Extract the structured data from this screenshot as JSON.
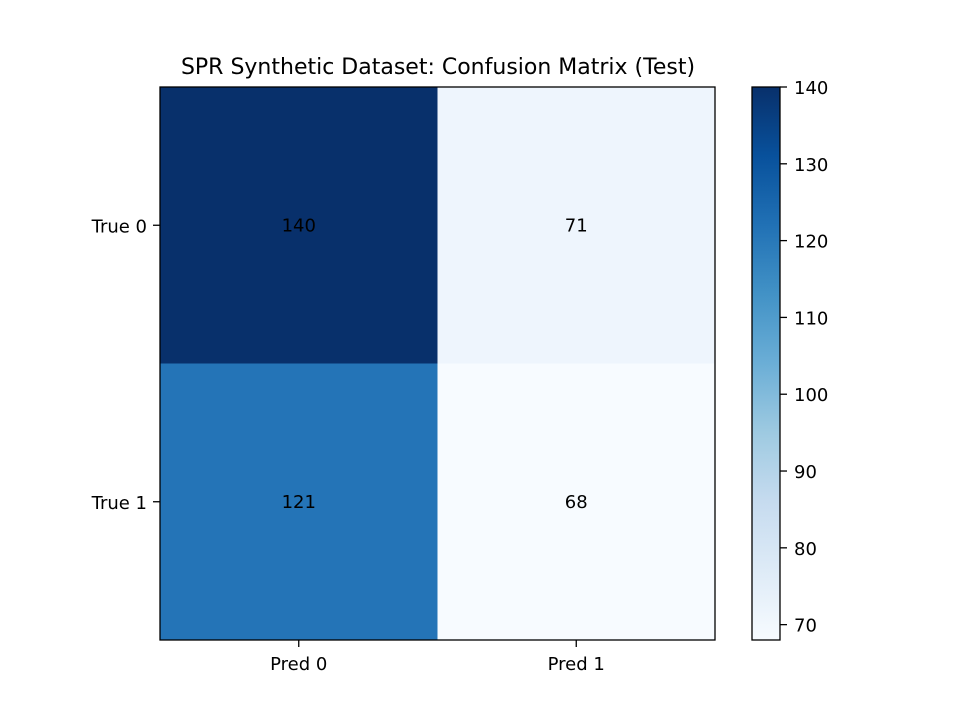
{
  "chart_data": {
    "type": "heatmap",
    "title": "SPR Synthetic Dataset: Confusion Matrix (Test)",
    "xlabel": "",
    "ylabel": "",
    "x_categories": [
      "Pred 0",
      "Pred 1"
    ],
    "y_categories": [
      "True 0",
      "True 1"
    ],
    "values": [
      [
        140,
        71
      ],
      [
        121,
        68
      ]
    ],
    "colormap": "Blues",
    "colorbar": {
      "vmin": 68,
      "vmax": 140,
      "ticks": [
        70,
        80,
        90,
        100,
        110,
        120,
        130,
        140
      ]
    },
    "grid": false,
    "colors": {
      "cell_0_0": "#08306b",
      "cell_0_1": "#eef5fd",
      "cell_1_0": "#2474b7",
      "cell_1_1": "#f7fbff"
    }
  }
}
